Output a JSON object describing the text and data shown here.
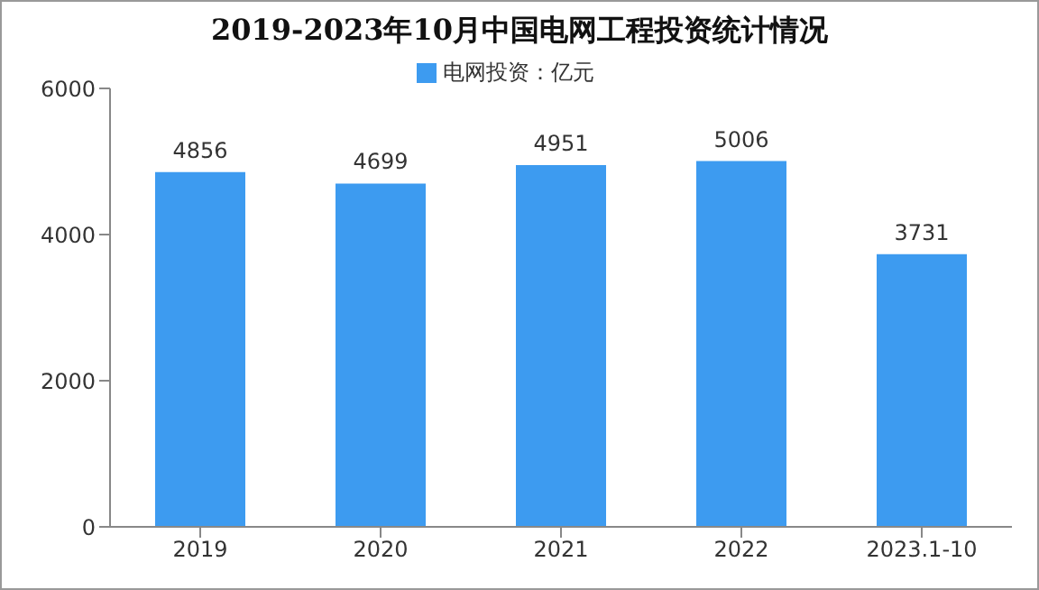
{
  "chart_data": {
    "type": "bar",
    "title": "2019-2023年10月中国电网工程投资统计情况",
    "categories": [
      "2019",
      "2020",
      "2021",
      "2022",
      "2023.1-10"
    ],
    "series": [
      {
        "name": "电网投资：亿元",
        "color": "#3d9bf0",
        "values": [
          4856,
          4699,
          4951,
          5006,
          3731
        ]
      }
    ],
    "ylim": [
      0,
      6000
    ],
    "yticks": [
      0,
      2000,
      4000,
      6000
    ],
    "legend": "top",
    "data_labels": true
  }
}
